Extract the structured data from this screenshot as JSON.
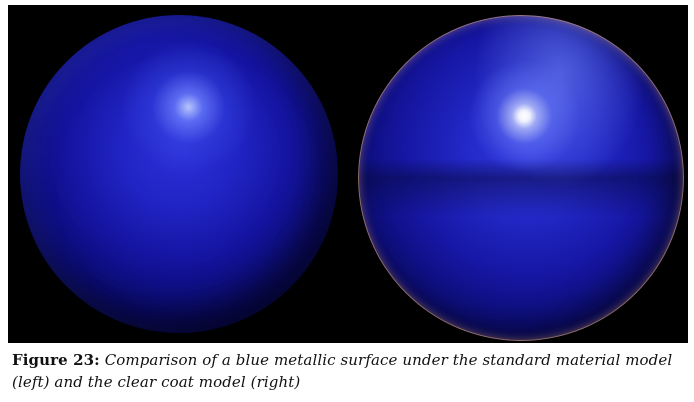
{
  "figure": {
    "label": "Figure 23:",
    "caption": "Comparison of a blue metallic surface under the standard material model (left) and the clear coat model (right)"
  },
  "colors": {
    "background": "#000000",
    "metal_blue": "#2124c4",
    "clear_coat_rim": "#ffdcbe"
  }
}
